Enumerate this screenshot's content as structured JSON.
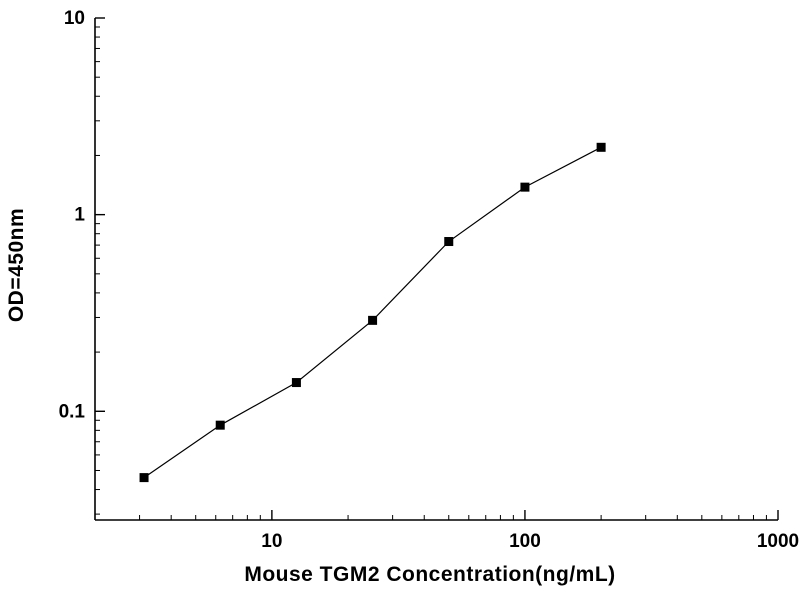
{
  "chart_data": {
    "type": "scatter",
    "title": "",
    "xlabel": "Mouse TGM2 Concentration(ng/mL)",
    "ylabel": "OD=450nm",
    "x_scale": "log",
    "y_scale": "log",
    "xlim": [
      2,
      1000
    ],
    "ylim": [
      0.028,
      10
    ],
    "grid": false,
    "legend": "none",
    "marker": "filled-square",
    "marker_color": "#000000",
    "line_color": "#000000",
    "axis_color": "#000000",
    "x": [
      3.125,
      6.25,
      12.5,
      25,
      50,
      100,
      200
    ],
    "y": [
      0.046,
      0.085,
      0.14,
      0.29,
      0.73,
      1.38,
      2.2
    ],
    "x_major_ticks": [
      {
        "value": 10,
        "label": "10"
      },
      {
        "value": 100,
        "label": "100"
      },
      {
        "value": 1000,
        "label": "1000"
      }
    ],
    "y_major_ticks": [
      {
        "value": 0.1,
        "label": "0.1"
      },
      {
        "value": 1,
        "label": "1"
      },
      {
        "value": 10,
        "label": "10"
      }
    ]
  }
}
